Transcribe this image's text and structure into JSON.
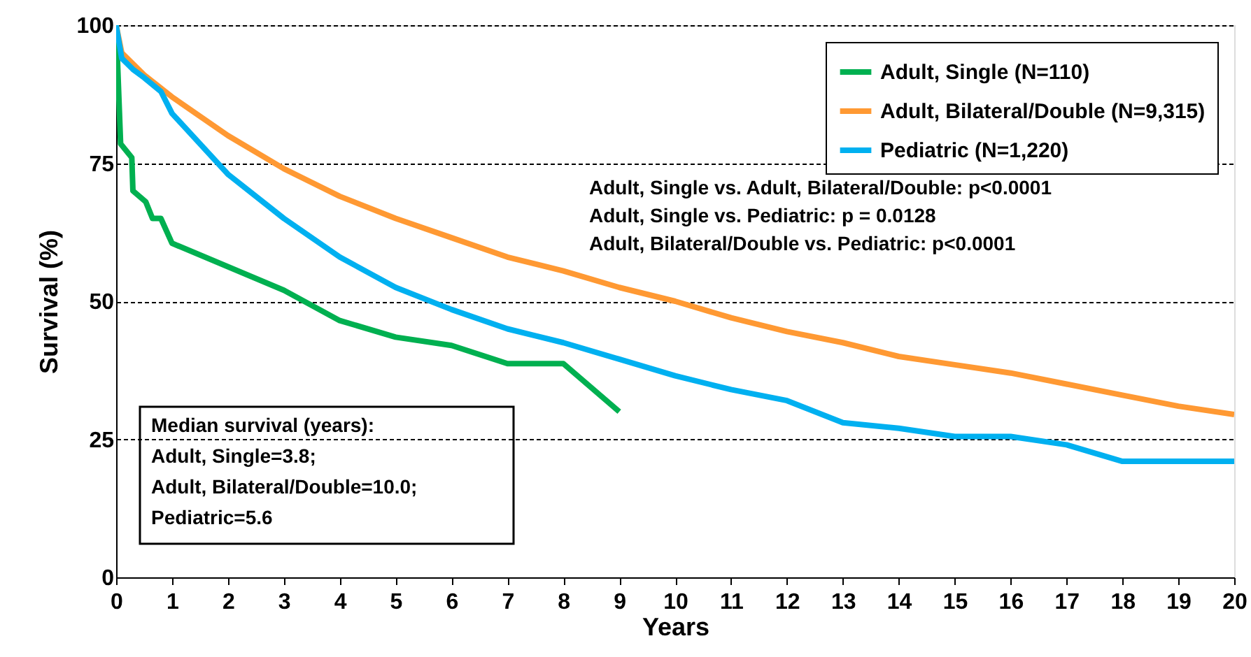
{
  "chart_data": {
    "type": "line",
    "xlabel": "Years",
    "ylabel": "Survival (%)",
    "xlim": [
      0,
      20
    ],
    "xticks": [
      0,
      1,
      2,
      3,
      4,
      5,
      6,
      7,
      8,
      9,
      10,
      11,
      12,
      13,
      14,
      15,
      16,
      17,
      18,
      19,
      20
    ],
    "ylim": [
      0,
      100
    ],
    "yticks": [
      0,
      25,
      50,
      75,
      100
    ],
    "grid": "y",
    "legend": "top right",
    "marker": "none",
    "line_style": "solid",
    "series": [
      {
        "name": "Adult, Single (N=110)",
        "color": "#00b050",
        "x": [
          0,
          0.08,
          0.28,
          0.3,
          0.53,
          0.65,
          0.8,
          1,
          3,
          4,
          5,
          6,
          7,
          8,
          9
        ],
        "values": [
          100,
          78.5,
          76,
          70,
          68,
          65,
          65,
          60.5,
          52,
          46.5,
          43.5,
          42,
          38.7,
          38.7,
          30
        ]
      },
      {
        "name": "Adult, Bilateral/Double (N=9,315)",
        "color": "#ff9933",
        "x": [
          0,
          0.1,
          0.5,
          1,
          2,
          3,
          4,
          5,
          6,
          7,
          8,
          9,
          10,
          11,
          12,
          13,
          14,
          15,
          16,
          17,
          18,
          19,
          20
        ],
        "values": [
          100,
          95,
          91,
          87,
          80,
          74,
          69,
          65,
          61.5,
          58,
          55.5,
          52.5,
          50,
          47,
          44.5,
          42.5,
          40,
          38.5,
          37,
          35,
          33,
          31,
          29.5
        ]
      },
      {
        "name": "Pediatric (N=1,220)",
        "color": "#00b0f0",
        "x": [
          0,
          0.1,
          0.3,
          0.5,
          0.8,
          1,
          2,
          3,
          4,
          5,
          6,
          7,
          8,
          9,
          10,
          11,
          12,
          13,
          14,
          15,
          16,
          17,
          18,
          20
        ],
        "values": [
          100,
          94,
          92,
          90.5,
          88,
          84,
          73,
          65,
          58,
          52.5,
          48.5,
          45,
          42.5,
          39.5,
          36.5,
          34,
          32,
          28,
          27,
          25.5,
          25.5,
          24,
          21,
          21
        ]
      }
    ],
    "annotations": [
      "Adult, Single vs. Adult, Bilateral/Double: p<0.0001\nAdult, Single vs. Pediatric: p = 0.0128\nAdult, Bilateral/Double vs. Pediatric: p<0.0001",
      "Median survival (years):\nAdult, Single=3.8;\nAdult, Bilateral/Double=10.0;\nPediatric=5.6"
    ]
  }
}
